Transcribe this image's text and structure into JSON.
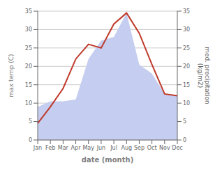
{
  "chart_data": {
    "type": "line",
    "x_label": "date (month)",
    "y_label": "max temp (C)",
    "y2_label": "med. precipitation\n(kg/m2)",
    "categories": [
      "Jan",
      "Feb",
      "Mar",
      "Apr",
      "May",
      "Jun",
      "Jul",
      "Aug",
      "Sep",
      "Oct",
      "Nov",
      "Dec"
    ],
    "series": [
      {
        "type": "area",
        "color": "#c5cef0",
        "axis": "y2",
        "values": [
          9.0,
          10.5,
          10.5,
          11.0,
          22.0,
          27.0,
          28.0,
          34.5,
          20.5,
          18.0,
          12.5,
          12.0
        ]
      },
      {
        "type": "line",
        "color": "#c0392b",
        "values": [
          4.5,
          9.0,
          14.0,
          22.0,
          26.0,
          25.0,
          31.5,
          34.5,
          29.0,
          20.5,
          12.5,
          12.0
        ]
      }
    ],
    "ylim": [
      0,
      35
    ],
    "yticks": [
      0,
      5,
      10,
      15,
      20,
      25,
      30,
      35
    ],
    "y2lim": [
      0,
      35
    ],
    "y2ticks": [
      0,
      5,
      10,
      15,
      20,
      25,
      30,
      35
    ],
    "grid": true
  }
}
